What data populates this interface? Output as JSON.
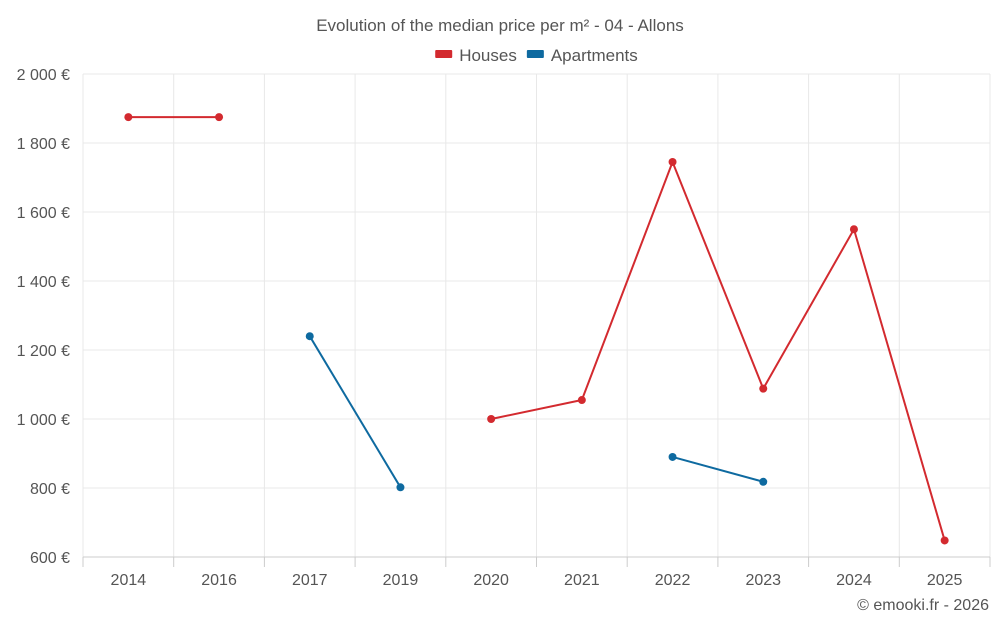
{
  "chart_data": {
    "type": "line",
    "title": "Evolution of the median price per m² - 04 - Allons",
    "categories": [
      "2014",
      "2016",
      "2017",
      "2019",
      "2020",
      "2021",
      "2022",
      "2023",
      "2024",
      "2025"
    ],
    "y_ticks": [
      600,
      800,
      1000,
      1200,
      1400,
      1600,
      1800,
      2000
    ],
    "y_tick_labels": [
      "600 €",
      "800 €",
      "1 000 €",
      "1 200 €",
      "1 400 €",
      "1 600 €",
      "1 800 €",
      "2 000 €"
    ],
    "ylim": [
      600,
      2000
    ],
    "grid": true,
    "legend_position": "top-center",
    "series": [
      {
        "name": "Houses",
        "color": "#d32a2f",
        "values": [
          1875,
          1875,
          null,
          null,
          1000,
          1055,
          1745,
          1088,
          1550,
          648
        ]
      },
      {
        "name": "Apartments",
        "color": "#0e6aa0",
        "values": [
          null,
          null,
          1240,
          802,
          null,
          null,
          890,
          818,
          null,
          null
        ]
      }
    ],
    "credit": "© emooki.fr - 2026"
  }
}
